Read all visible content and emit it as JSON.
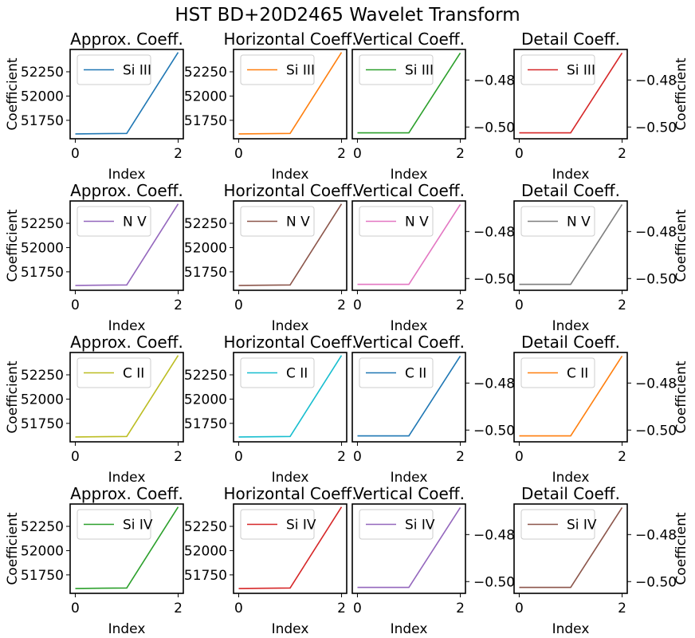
{
  "title": "HST BD+20D2465 Wavelet Transform",
  "chart_data": {
    "type": "line",
    "grid": false,
    "legend_position": "upper-left",
    "x_ticks": [
      0,
      2
    ],
    "x_label": "Index",
    "y_label": "Coefficient",
    "columns": [
      {
        "title": "Approx. Coeff.",
        "ylim": [
          51560,
          52480
        ],
        "yticks": [
          51750,
          52000,
          52250
        ],
        "ytick_labels": [
          "51750",
          "52000",
          "52250"
        ],
        "yaxis": "left",
        "ylabel_shown": true
      },
      {
        "title": "Horizontal Coeff.",
        "ylim": [
          51560,
          52480
        ],
        "yticks": [
          51750,
          52000,
          52250
        ],
        "ytick_labels": [
          "51750",
          "52000",
          "52250"
        ],
        "yaxis": "left",
        "ylabel_shown": false
      },
      {
        "title": "Vertical Coeff.",
        "ylim": [
          -0.505,
          -0.467
        ],
        "yticks": [
          -0.5,
          -0.48
        ],
        "ytick_labels": [
          "−0.50",
          "−0.48"
        ],
        "yaxis": "right",
        "ylabel_shown": false
      },
      {
        "title": "Detail Coeff.",
        "ylim": [
          -0.505,
          -0.467
        ],
        "yticks": [
          -0.5,
          -0.48
        ],
        "ytick_labels": [
          "−0.50",
          "−0.48"
        ],
        "yaxis": "right",
        "ylabel_shown": true
      }
    ],
    "rows": [
      {
        "ion": "Si III",
        "colors": [
          "#1f77b4",
          "#ff7f0e",
          "#2ca02c",
          "#d62728"
        ]
      },
      {
        "ion": "N V",
        "colors": [
          "#9467bd",
          "#8c564b",
          "#e377c2",
          "#7f7f7f"
        ]
      },
      {
        "ion": "C II",
        "colors": [
          "#bcbd22",
          "#17becf",
          "#1f77b4",
          "#ff7f0e"
        ]
      },
      {
        "ion": "Si IV",
        "colors": [
          "#2ca02c",
          "#d62728",
          "#9467bd",
          "#8c564b"
        ]
      }
    ],
    "series_values": {
      "x": [
        0,
        1,
        2
      ],
      "approx": [
        51610,
        51615,
        52450
      ],
      "horizontal": [
        51610,
        51615,
        52450
      ],
      "vertical": [
        -0.5025,
        -0.5025,
        -0.4685
      ],
      "detail": [
        -0.5025,
        -0.5025,
        -0.4685
      ]
    }
  }
}
